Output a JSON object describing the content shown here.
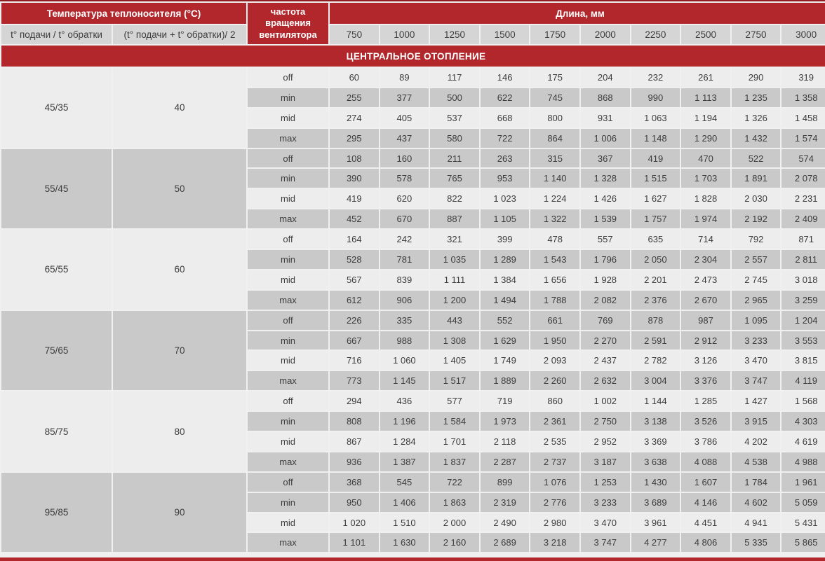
{
  "header": {
    "temp_title": "Температура теплоносителя (°С)",
    "supply_return_label": "t° подачи / t° обратки",
    "average_label": "(t° подачи + t° обратки)/ 2",
    "fan_speed_label": "частота вращения вентилятора",
    "length_title": "Длина, мм",
    "lengths": [
      "750",
      "1000",
      "1250",
      "1500",
      "1750",
      "2000",
      "2250",
      "2500",
      "2750",
      "3000"
    ]
  },
  "section_title": "ЦЕНТРАЛЬНОЕ ОТОПЛЕНИЕ",
  "colors": {
    "accent_red": "#b1272c",
    "row_light": "#ededed",
    "row_dark": "#c9c9c9",
    "header_gray": "#d5d5d5"
  },
  "groups": [
    {
      "supply_return": "45/35",
      "average": "40",
      "shade": "light",
      "rows": [
        {
          "speed": "off",
          "shade": "light",
          "values": [
            "60",
            "89",
            "117",
            "146",
            "175",
            "204",
            "232",
            "261",
            "290",
            "319"
          ]
        },
        {
          "speed": "min",
          "shade": "dark",
          "values": [
            "255",
            "377",
            "500",
            "622",
            "745",
            "868",
            "990",
            "1 113",
            "1 235",
            "1 358"
          ]
        },
        {
          "speed": "mid",
          "shade": "light",
          "values": [
            "274",
            "405",
            "537",
            "668",
            "800",
            "931",
            "1 063",
            "1 194",
            "1 326",
            "1 458"
          ]
        },
        {
          "speed": "max",
          "shade": "dark",
          "values": [
            "295",
            "437",
            "580",
            "722",
            "864",
            "1 006",
            "1 148",
            "1 290",
            "1 432",
            "1 574"
          ]
        }
      ]
    },
    {
      "supply_return": "55/45",
      "average": "50",
      "shade": "dark",
      "rows": [
        {
          "speed": "off",
          "shade": "dark",
          "values": [
            "108",
            "160",
            "211",
            "263",
            "315",
            "367",
            "419",
            "470",
            "522",
            "574"
          ]
        },
        {
          "speed": "min",
          "shade": "dark",
          "values": [
            "390",
            "578",
            "765",
            "953",
            "1 140",
            "1 328",
            "1 515",
            "1 703",
            "1 891",
            "2 078"
          ]
        },
        {
          "speed": "mid",
          "shade": "light",
          "values": [
            "419",
            "620",
            "822",
            "1 023",
            "1 224",
            "1 426",
            "1 627",
            "1 828",
            "2 030",
            "2 231"
          ]
        },
        {
          "speed": "max",
          "shade": "dark",
          "values": [
            "452",
            "670",
            "887",
            "1 105",
            "1 322",
            "1 539",
            "1 757",
            "1 974",
            "2 192",
            "2 409"
          ]
        }
      ]
    },
    {
      "supply_return": "65/55",
      "average": "60",
      "shade": "light",
      "rows": [
        {
          "speed": "off",
          "shade": "light",
          "values": [
            "164",
            "242",
            "321",
            "399",
            "478",
            "557",
            "635",
            "714",
            "792",
            "871"
          ]
        },
        {
          "speed": "min",
          "shade": "dark",
          "values": [
            "528",
            "781",
            "1 035",
            "1 289",
            "1 543",
            "1 796",
            "2 050",
            "2 304",
            "2 557",
            "2 811"
          ]
        },
        {
          "speed": "mid",
          "shade": "light",
          "values": [
            "567",
            "839",
            "1 111",
            "1 384",
            "1 656",
            "1 928",
            "2 201",
            "2 473",
            "2 745",
            "3 018"
          ]
        },
        {
          "speed": "max",
          "shade": "dark",
          "values": [
            "612",
            "906",
            "1 200",
            "1 494",
            "1 788",
            "2 082",
            "2 376",
            "2 670",
            "2 965",
            "3 259"
          ]
        }
      ]
    },
    {
      "supply_return": "75/65",
      "average": "70",
      "shade": "dark",
      "rows": [
        {
          "speed": "off",
          "shade": "dark",
          "values": [
            "226",
            "335",
            "443",
            "552",
            "661",
            "769",
            "878",
            "987",
            "1 095",
            "1 204"
          ]
        },
        {
          "speed": "min",
          "shade": "dark",
          "values": [
            "667",
            "988",
            "1 308",
            "1 629",
            "1 950",
            "2 270",
            "2 591",
            "2 912",
            "3 233",
            "3 553"
          ]
        },
        {
          "speed": "mid",
          "shade": "light",
          "values": [
            "716",
            "1 060",
            "1 405",
            "1 749",
            "2 093",
            "2 437",
            "2 782",
            "3 126",
            "3 470",
            "3 815"
          ]
        },
        {
          "speed": "max",
          "shade": "dark",
          "values": [
            "773",
            "1 145",
            "1 517",
            "1 889",
            "2 260",
            "2 632",
            "3 004",
            "3 376",
            "3 747",
            "4 119"
          ]
        }
      ]
    },
    {
      "supply_return": "85/75",
      "average": "80",
      "shade": "light",
      "rows": [
        {
          "speed": "off",
          "shade": "light",
          "values": [
            "294",
            "436",
            "577",
            "719",
            "860",
            "1 002",
            "1 144",
            "1 285",
            "1 427",
            "1 568"
          ]
        },
        {
          "speed": "min",
          "shade": "dark",
          "values": [
            "808",
            "1 196",
            "1 584",
            "1 973",
            "2 361",
            "2 750",
            "3 138",
            "3 526",
            "3 915",
            "4 303"
          ]
        },
        {
          "speed": "mid",
          "shade": "light",
          "values": [
            "867",
            "1 284",
            "1 701",
            "2 118",
            "2 535",
            "2 952",
            "3 369",
            "3 786",
            "4 202",
            "4 619"
          ]
        },
        {
          "speed": "max",
          "shade": "dark",
          "values": [
            "936",
            "1 387",
            "1 837",
            "2 287",
            "2 737",
            "3 187",
            "3 638",
            "4 088",
            "4 538",
            "4 988"
          ]
        }
      ]
    },
    {
      "supply_return": "95/85",
      "average": "90",
      "shade": "dark",
      "rows": [
        {
          "speed": "off",
          "shade": "dark",
          "values": [
            "368",
            "545",
            "722",
            "899",
            "1 076",
            "1 253",
            "1 430",
            "1 607",
            "1 784",
            "1 961"
          ]
        },
        {
          "speed": "min",
          "shade": "dark",
          "values": [
            "950",
            "1 406",
            "1 863",
            "2 319",
            "2 776",
            "3 233",
            "3 689",
            "4 146",
            "4 602",
            "5 059"
          ]
        },
        {
          "speed": "mid",
          "shade": "light",
          "values": [
            "1 020",
            "1 510",
            "2 000",
            "2 490",
            "2 980",
            "3 470",
            "3 961",
            "4 451",
            "4 941",
            "5 431"
          ]
        },
        {
          "speed": "max",
          "shade": "dark",
          "values": [
            "1 101",
            "1 630",
            "2 160",
            "2 689",
            "3 218",
            "3 747",
            "4 277",
            "4 806",
            "5 335",
            "5 865"
          ]
        }
      ]
    }
  ]
}
